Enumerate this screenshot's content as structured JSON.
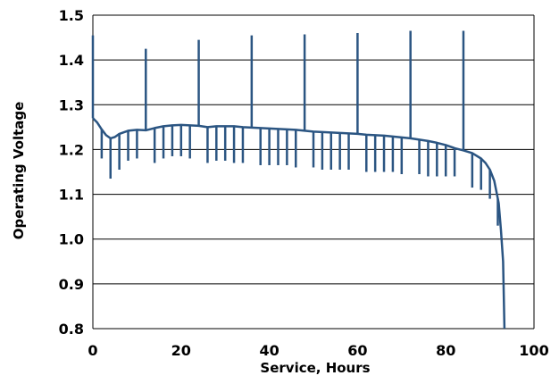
{
  "chart_data": {
    "type": "line",
    "title": "",
    "xlabel": "Service, Hours",
    "ylabel": "Operating Voltage",
    "xlim": [
      0,
      100
    ],
    "ylim": [
      0.8,
      1.5
    ],
    "x_ticks": [
      "0",
      "20",
      "40",
      "60",
      "80",
      "100"
    ],
    "y_ticks": [
      "0.8",
      "0.9",
      "1.0",
      "1.1",
      "1.2",
      "1.3",
      "1.4",
      "1.5"
    ],
    "grid": "horizontal",
    "legend": "none",
    "line_color": "#2b5582",
    "series": [
      {
        "x": [
          0,
          1,
          2,
          3,
          4,
          5,
          6,
          8,
          10,
          12,
          14,
          16,
          18,
          20,
          22,
          24,
          26,
          28,
          30,
          32,
          34,
          36,
          38,
          40,
          42,
          44,
          46,
          48,
          50,
          52,
          54,
          56,
          58,
          60,
          62,
          64,
          66,
          68,
          70,
          72,
          74,
          76,
          78,
          80,
          82,
          84,
          86,
          88,
          89,
          90,
          91,
          92,
          92.5,
          93,
          93.3
        ],
        "y": [
          1.27,
          1.26,
          1.245,
          1.232,
          1.225,
          1.228,
          1.235,
          1.242,
          1.244,
          1.243,
          1.248,
          1.252,
          1.254,
          1.255,
          1.254,
          1.253,
          1.25,
          1.252,
          1.252,
          1.252,
          1.25,
          1.249,
          1.248,
          1.247,
          1.246,
          1.245,
          1.244,
          1.242,
          1.24,
          1.239,
          1.238,
          1.237,
          1.236,
          1.235,
          1.233,
          1.232,
          1.231,
          1.229,
          1.227,
          1.225,
          1.222,
          1.219,
          1.215,
          1.21,
          1.203,
          1.198,
          1.192,
          1.18,
          1.17,
          1.155,
          1.13,
          1.08,
          1.02,
          0.95,
          0.8
        ]
      }
    ],
    "pulse_dips": [
      {
        "x": 2,
        "y": 1.18
      },
      {
        "x": 4,
        "y": 1.135
      },
      {
        "x": 6,
        "y": 1.155
      },
      {
        "x": 8,
        "y": 1.175
      },
      {
        "x": 10,
        "y": 1.18
      },
      {
        "x": 14,
        "y": 1.17
      },
      {
        "x": 16,
        "y": 1.18
      },
      {
        "x": 18,
        "y": 1.185
      },
      {
        "x": 20,
        "y": 1.185
      },
      {
        "x": 22,
        "y": 1.18
      },
      {
        "x": 26,
        "y": 1.17
      },
      {
        "x": 28,
        "y": 1.175
      },
      {
        "x": 30,
        "y": 1.175
      },
      {
        "x": 32,
        "y": 1.17
      },
      {
        "x": 34,
        "y": 1.17
      },
      {
        "x": 38,
        "y": 1.165
      },
      {
        "x": 40,
        "y": 1.165
      },
      {
        "x": 42,
        "y": 1.165
      },
      {
        "x": 44,
        "y": 1.165
      },
      {
        "x": 46,
        "y": 1.16
      },
      {
        "x": 50,
        "y": 1.16
      },
      {
        "x": 52,
        "y": 1.155
      },
      {
        "x": 54,
        "y": 1.155
      },
      {
        "x": 56,
        "y": 1.155
      },
      {
        "x": 58,
        "y": 1.155
      },
      {
        "x": 62,
        "y": 1.15
      },
      {
        "x": 64,
        "y": 1.15
      },
      {
        "x": 66,
        "y": 1.15
      },
      {
        "x": 68,
        "y": 1.15
      },
      {
        "x": 70,
        "y": 1.145
      },
      {
        "x": 74,
        "y": 1.145
      },
      {
        "x": 76,
        "y": 1.14
      },
      {
        "x": 78,
        "y": 1.14
      },
      {
        "x": 80,
        "y": 1.14
      },
      {
        "x": 82,
        "y": 1.14
      },
      {
        "x": 86,
        "y": 1.115
      },
      {
        "x": 88,
        "y": 1.11
      },
      {
        "x": 90,
        "y": 1.09
      },
      {
        "x": 91.8,
        "y": 1.03
      }
    ],
    "pulse_spikes": [
      {
        "x": 0,
        "y": 1.455
      },
      {
        "x": 12,
        "y": 1.425
      },
      {
        "x": 24,
        "y": 1.445
      },
      {
        "x": 36,
        "y": 1.455
      },
      {
        "x": 48,
        "y": 1.457
      },
      {
        "x": 60,
        "y": 1.46
      },
      {
        "x": 72,
        "y": 1.465
      },
      {
        "x": 84,
        "y": 1.465
      }
    ]
  }
}
